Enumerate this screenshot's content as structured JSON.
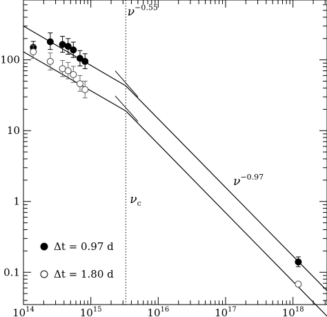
{
  "chart_data": {
    "type": "scatter",
    "title": "",
    "xlabel": "",
    "ylabel": "",
    "xscale": "log",
    "yscale": "log",
    "xlim": [
      100000000000000.0,
      3.2e+18
    ],
    "ylim": [
      0.035,
      700
    ],
    "grid": false,
    "legend_position": "bottom-left",
    "x_ticks": [
      {
        "base": "10",
        "exp": "14"
      },
      {
        "base": "10",
        "exp": "15"
      },
      {
        "base": "10",
        "exp": "16"
      },
      {
        "base": "10",
        "exp": "17"
      },
      {
        "base": "10",
        "exp": "18"
      }
    ],
    "y_ticks": [
      "0.1",
      "1",
      "10",
      "100"
    ],
    "series": [
      {
        "name": "Δt  =  0.97 d",
        "marker": "filled-circle",
        "points": [
          {
            "x": 140000000000000.0,
            "y": 150,
            "yerr_low": 125,
            "yerr_high": 182
          },
          {
            "x": 250000000000000.0,
            "y": 180,
            "yerr_low": 140,
            "yerr_high": 240
          },
          {
            "x": 380000000000000.0,
            "y": 165,
            "yerr_low": 128,
            "yerr_high": 215
          },
          {
            "x": 460000000000000.0,
            "y": 155,
            "yerr_low": 120,
            "yerr_high": 200
          },
          {
            "x": 550000000000000.0,
            "y": 138,
            "yerr_low": 108,
            "yerr_high": 178
          },
          {
            "x": 690000000000000.0,
            "y": 105,
            "yerr_low": 82,
            "yerr_high": 135
          },
          {
            "x": 820000000000000.0,
            "y": 95,
            "yerr_low": 75,
            "yerr_high": 122
          },
          {
            "x": 1.2e+18,
            "y": 0.14,
            "yerr_low": 0.12,
            "yerr_high": 0.165
          }
        ]
      },
      {
        "name": "Δt  =  1.80 d",
        "marker": "open-circle",
        "points": [
          {
            "x": 140000000000000.0,
            "y": 130,
            "yerr_low": 105,
            "yerr_high": 160
          },
          {
            "x": 250000000000000.0,
            "y": 95,
            "yerr_low": 72,
            "yerr_high": 125
          },
          {
            "x": 380000000000000.0,
            "y": 75,
            "yerr_low": 58,
            "yerr_high": 98
          },
          {
            "x": 460000000000000.0,
            "y": 70,
            "yerr_low": 54,
            "yerr_high": 92
          },
          {
            "x": 550000000000000.0,
            "y": 62,
            "yerr_low": 48,
            "yerr_high": 81
          },
          {
            "x": 690000000000000.0,
            "y": 46,
            "yerr_low": 36,
            "yerr_high": 60
          },
          {
            "x": 820000000000000.0,
            "y": 38,
            "yerr_low": 29,
            "yerr_high": 50
          },
          {
            "x": 1.2e+18,
            "y": 0.068,
            "yerr_low": 0.063,
            "yerr_high": 0.073
          }
        ]
      }
    ],
    "model_lines": [
      {
        "name": "upper",
        "segments": [
          {
            "from": {
              "x": 100000000000000.0,
              "y": 300
            },
            "to": {
              "x": 3300000000000000.0,
              "y": 43
            }
          },
          {
            "from": {
              "x": 3300000000000000.0,
              "y": 43
            },
            "to": {
              "x": 3.2e+18,
              "y": 0.055
            }
          }
        ]
      },
      {
        "name": "lower",
        "segments": [
          {
            "from": {
              "x": 100000000000000.0,
              "y": 130
            },
            "to": {
              "x": 3300000000000000.0,
              "y": 19
            }
          },
          {
            "from": {
              "x": 3300000000000000.0,
              "y": 19
            },
            "to": {
              "x": 3.2e+18,
              "y": 0.024
            }
          }
        ]
      }
    ],
    "break_frequency_x": 3300000000000000.0,
    "break_ticks": [
      {
        "x1": 2300000000000000.0,
        "y1": 70,
        "x2": 5000000000000000.0,
        "y2": 30
      },
      {
        "x1": 2300000000000000.0,
        "y1": 31,
        "x2": 5000000000000000.0,
        "y2": 13.5
      }
    ],
    "annotations": {
      "low_slope": {
        "base": "ν",
        "sup": "−0.55",
        "x": 3500000000000000.0,
        "y": 420
      },
      "high_slope": {
        "base": "ν",
        "sup": "−0.97",
        "x": 1.3e+17,
        "y": 1.7
      },
      "break_label": {
        "base": "ν",
        "sub": "c",
        "x": 3300000000000000.0,
        "y": 0.95
      }
    }
  },
  "colors": {
    "ink": "#000000",
    "background": "#ffffff"
  }
}
